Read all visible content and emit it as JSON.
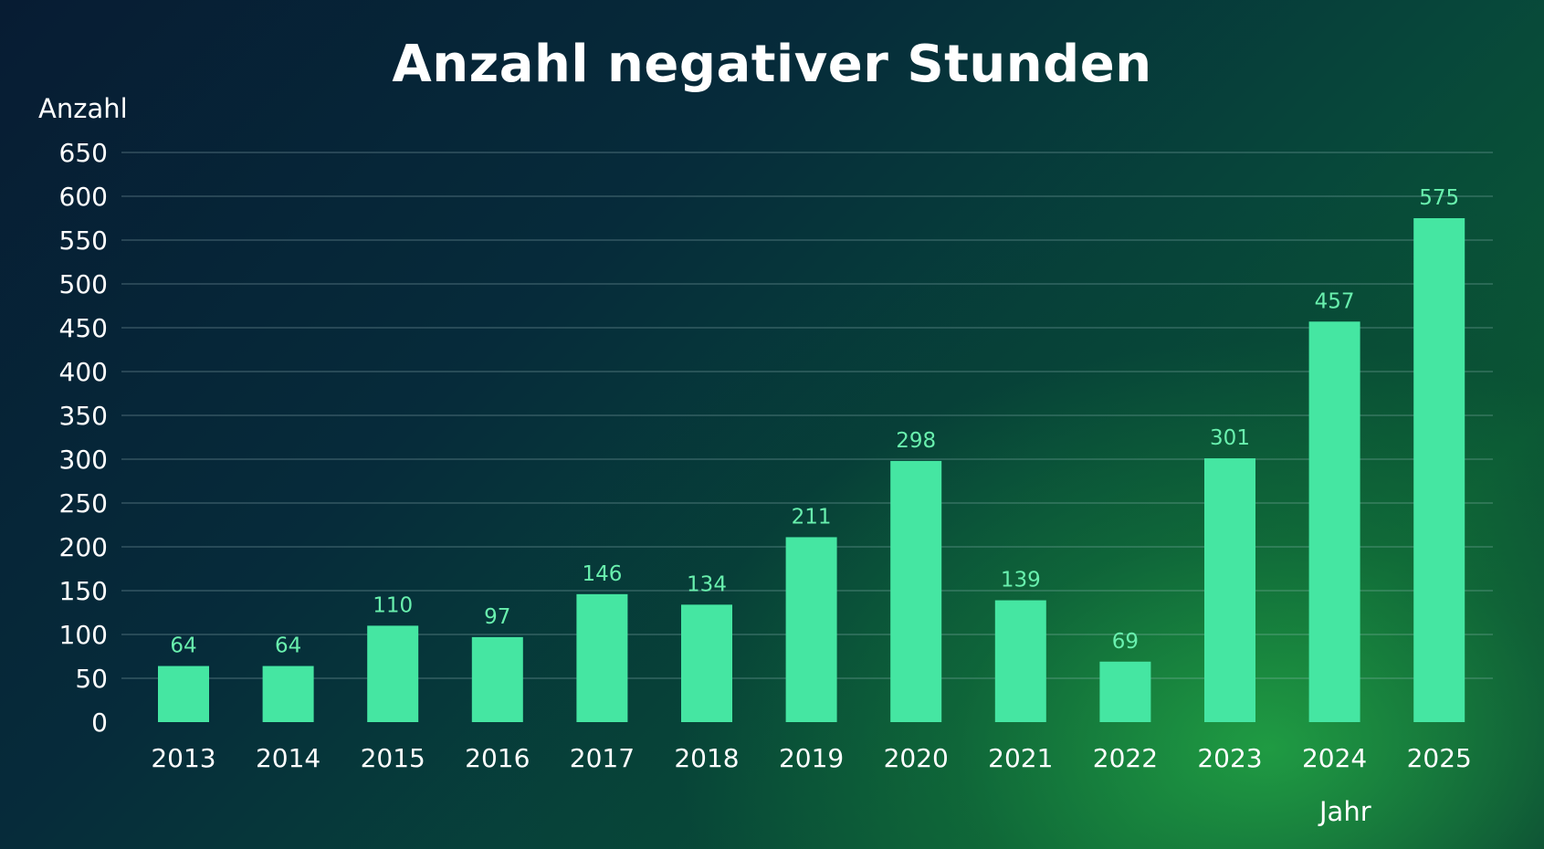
{
  "chart_data": {
    "type": "bar",
    "title": "Anzahl negativer Stunden",
    "xlabel": "Jahr",
    "ylabel": "Anzahl",
    "categories": [
      "2013",
      "2014",
      "2015",
      "2016",
      "2017",
      "2018",
      "2019",
      "2020",
      "2021",
      "2022",
      "2023",
      "2024",
      "2025"
    ],
    "values": [
      64,
      64,
      110,
      97,
      146,
      134,
      211,
      298,
      139,
      69,
      301,
      457,
      575
    ],
    "yticks": [
      "0",
      "50",
      "100",
      "150",
      "200",
      "250",
      "300",
      "350",
      "400",
      "450",
      "500",
      "550",
      "600",
      "650"
    ],
    "ylim": [
      0,
      650
    ],
    "grid": true,
    "legend": "none",
    "colors": {
      "bar": "#45e6a2",
      "data_label": "#69f0ae",
      "text": "#ffffff"
    }
  }
}
